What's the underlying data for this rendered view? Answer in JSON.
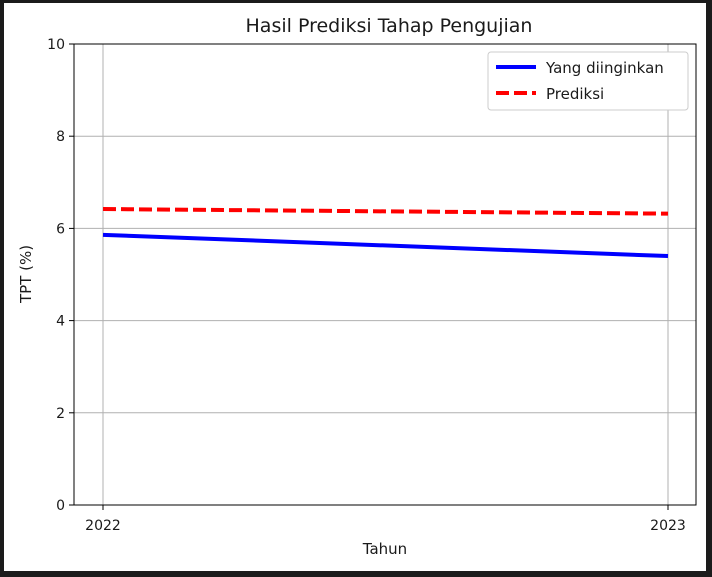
{
  "chart_data": {
    "type": "line",
    "title": "Hasil Prediksi Tahap Pengujian",
    "xlabel": "Tahun",
    "ylabel": "TPT (%)",
    "x": [
      "2022",
      "2023"
    ],
    "xticks": [
      "2022",
      "2023"
    ],
    "ylim": [
      0,
      10
    ],
    "yticks": [
      "0",
      "2",
      "4",
      "6",
      "8",
      "10"
    ],
    "grid": true,
    "legend_position": "top-right",
    "series": [
      {
        "name": "Yang diinginkan",
        "values": [
          5.86,
          5.4
        ],
        "color": "#0000ff",
        "style": "solid"
      },
      {
        "name": "Prediksi",
        "values": [
          6.42,
          6.32
        ],
        "color": "#ff0000",
        "style": "dashed"
      }
    ]
  }
}
